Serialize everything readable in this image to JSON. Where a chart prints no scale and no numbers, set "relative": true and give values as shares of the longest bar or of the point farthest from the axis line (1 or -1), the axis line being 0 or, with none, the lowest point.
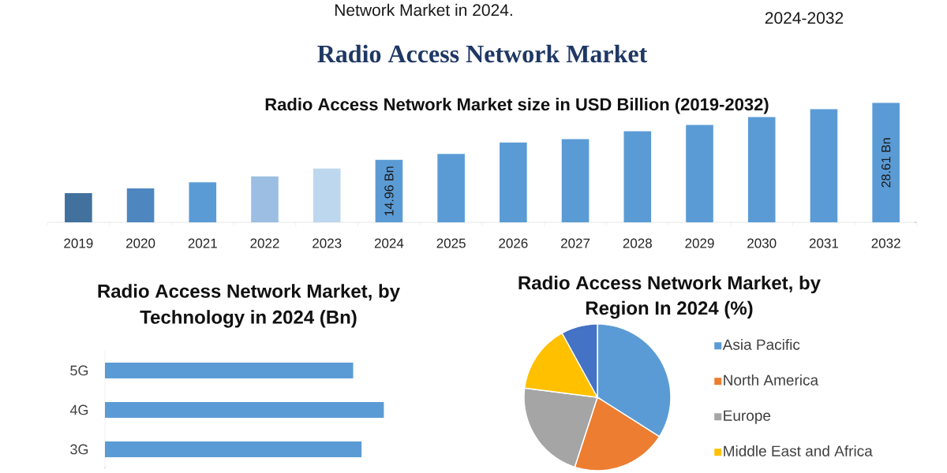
{
  "chart_data": [
    {
      "type": "bar",
      "title": "Radio Access Network Market",
      "subtitle": "Radio Access Network Market size in USD Billion (2019-2032)",
      "annotations": [
        "Network Market in 2024.",
        "2024-2032"
      ],
      "categories": [
        "2019",
        "2020",
        "2021",
        "2022",
        "2023",
        "2024",
        "2025",
        "2026",
        "2027",
        "2028",
        "2029",
        "2030",
        "2031",
        "2032"
      ],
      "values": [
        7.0,
        8.1,
        9.6,
        11.0,
        12.9,
        14.96,
        16.4,
        19.1,
        19.9,
        21.8,
        23.3,
        25.2,
        27.1,
        28.61
      ],
      "colors": [
        "#41719c",
        "#4e86c0",
        "#5b9bd5",
        "#9cbee3",
        "#bdd7ee",
        "#5b9bd5",
        "#5b9bd5",
        "#5b9bd5",
        "#5b9bd5",
        "#5b9bd5",
        "#5b9bd5",
        "#5b9bd5",
        "#5b9bd5",
        "#5b9bd5"
      ],
      "value_labels": [
        null,
        null,
        null,
        null,
        null,
        "14.96 Bn",
        null,
        null,
        null,
        null,
        null,
        null,
        null,
        "28.61 Bn"
      ]
    },
    {
      "type": "bar",
      "orientation": "horizontal",
      "relative": true,
      "title": "Radio Access Network Market, by Technology in 2024 (Bn)",
      "categories": [
        "5G",
        "4G",
        "3G"
      ],
      "values": [
        0.89,
        1,
        0.92
      ],
      "color": "#5b9bd5"
    },
    {
      "type": "pie",
      "title": "Radio Access Network Market, by Region In 2024 (%)",
      "categories": [
        "Asia Pacific",
        "North America",
        "Europe",
        "Middle East and Africa",
        null
      ],
      "values": [
        34,
        21,
        22,
        15,
        8
      ],
      "colors": [
        "#5b9bd5",
        "#ed7d31",
        "#a5a5a5",
        "#ffc000",
        "#4472c4"
      ],
      "legend": "right"
    }
  ]
}
